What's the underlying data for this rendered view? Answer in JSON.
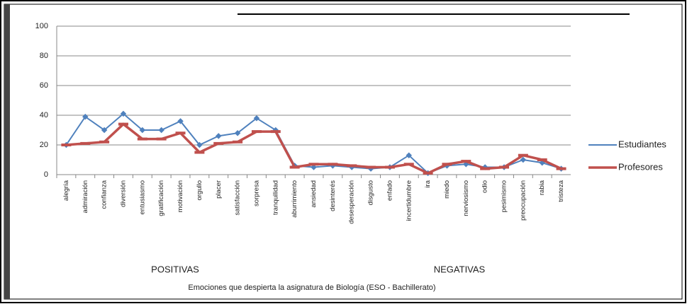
{
  "chart_data": {
    "type": "line",
    "title": "Emociones que despierta la asignatura de Biología (ESO - Bachillerato)",
    "annotations": [
      "POSITIVAS",
      "NEGATIVAS"
    ],
    "categories": [
      "alegría",
      "admiración",
      "confianza",
      "diversión",
      "entusiasmo",
      "gratificación",
      "motivación",
      "orgullo",
      "placer",
      "satisfacción",
      "sorpresa",
      "tranquilidad",
      "aburrimiento",
      "ansiedad",
      "desinterés",
      "desesperación",
      "disgusto",
      "enfado",
      "incertidumbre",
      "ira",
      "miedo",
      "nerviosismo",
      "odio",
      "pesimismo",
      "preocupación",
      "rabia",
      "tristeza"
    ],
    "series": [
      {
        "name": "Estudiantes",
        "color": "#4f81bd",
        "values": [
          20,
          39,
          30,
          41,
          30,
          30,
          36,
          20,
          26,
          28,
          38,
          30,
          6,
          5,
          6,
          5,
          4,
          5,
          13,
          1,
          6,
          7,
          5,
          5,
          10,
          8,
          4
        ]
      },
      {
        "name": "Profesores",
        "color": "#c0504d",
        "values": [
          20,
          21,
          22,
          34,
          24,
          24,
          28,
          15,
          21,
          22,
          29,
          29,
          5,
          7,
          7,
          6,
          5,
          5,
          7,
          1,
          7,
          9,
          4,
          5,
          13,
          10,
          4
        ]
      }
    ],
    "ylim": [
      0,
      100
    ],
    "yticks": [
      0,
      20,
      40,
      60,
      80,
      100
    ],
    "grid": true,
    "legend": "right"
  }
}
